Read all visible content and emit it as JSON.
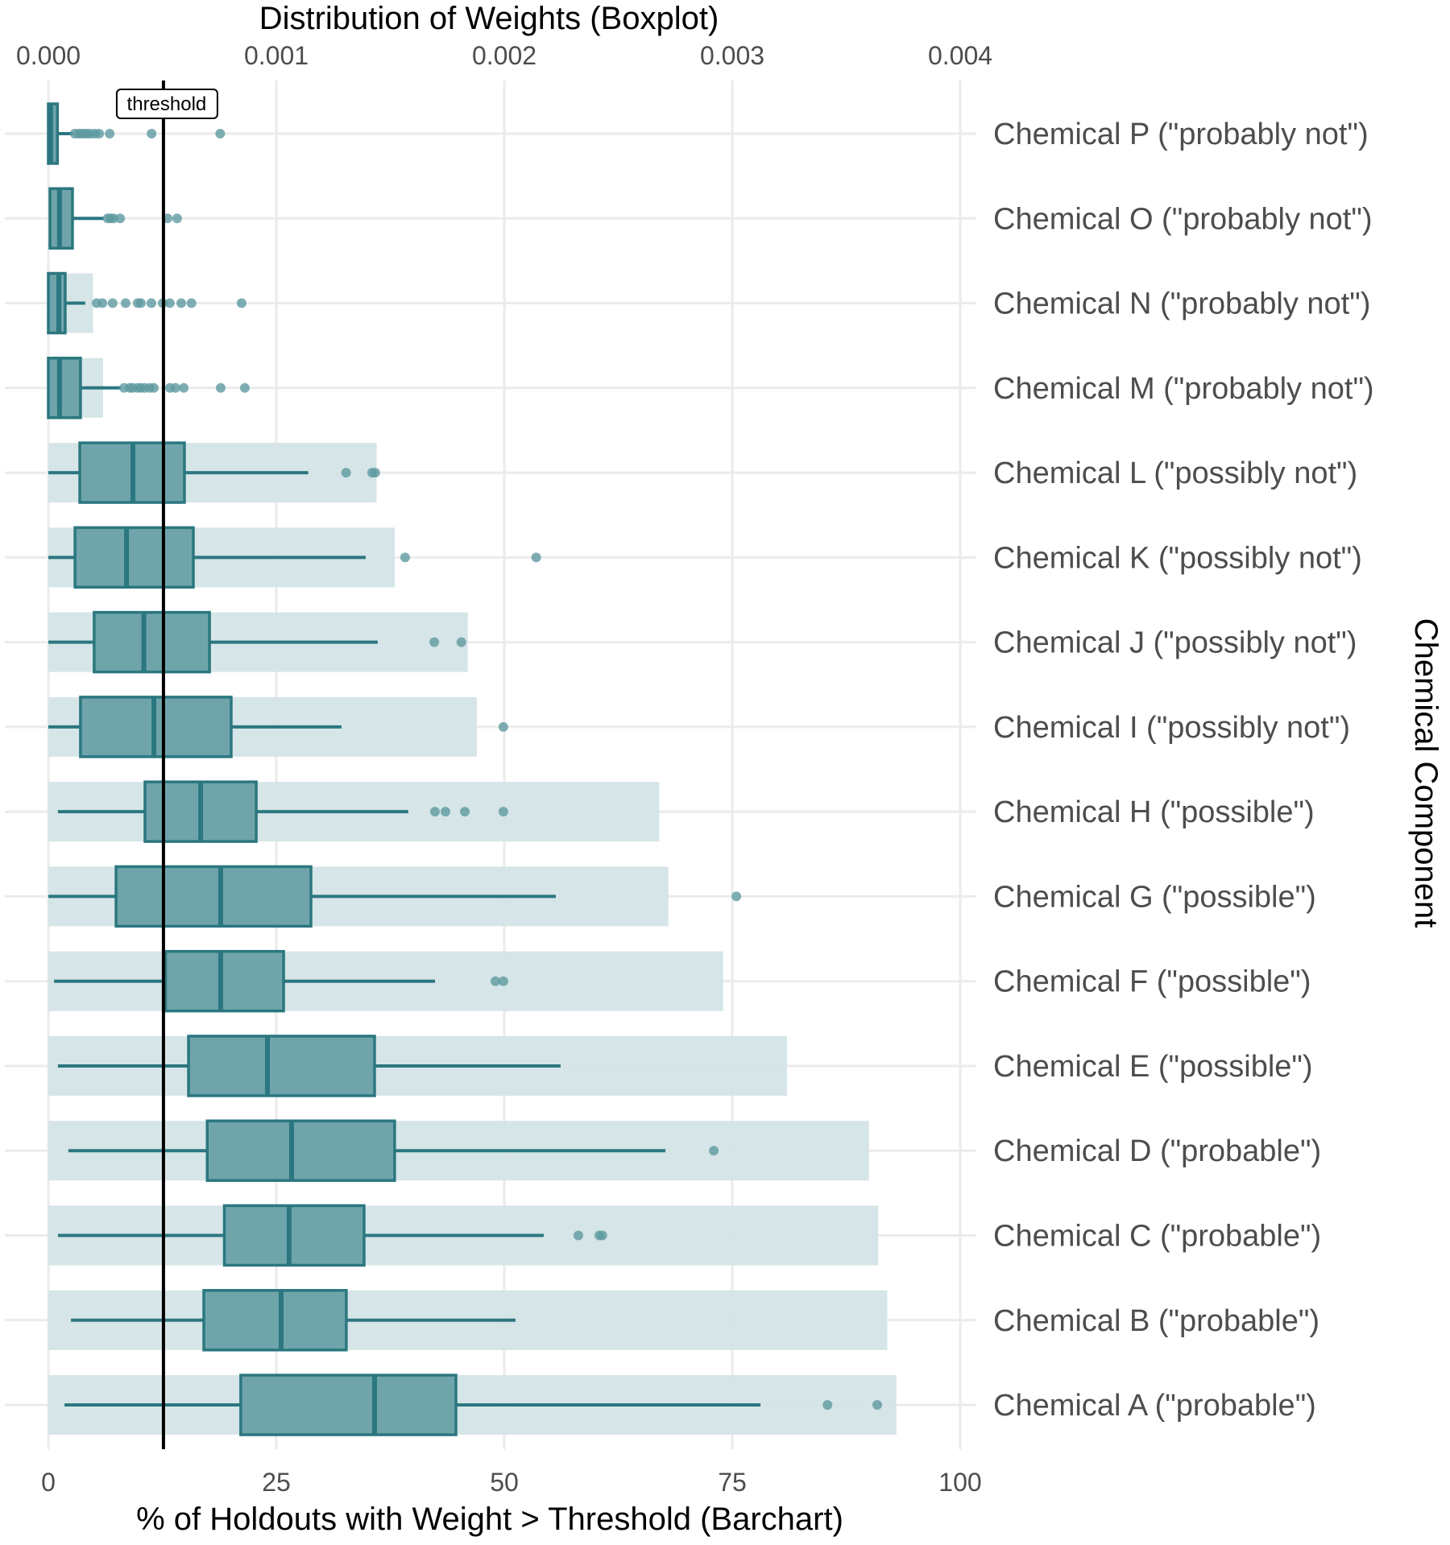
{
  "chart_data": {
    "type": "bar+boxplot",
    "title": "Distribution of Weights (Boxplot)",
    "top_axis": {
      "label": "Distribution of Weights (Boxplot)",
      "ticks": [
        "0.000",
        "0.001",
        "0.002",
        "0.003",
        "0.004"
      ],
      "tick_values": [
        0,
        0.001,
        0.002,
        0.003,
        0.004
      ],
      "range": [
        0,
        0.004
      ]
    },
    "bottom_axis": {
      "label": "% of Holdouts with Weight > Threshold (Barchart)",
      "ticks": [
        "0",
        "25",
        "50",
        "75",
        "100"
      ],
      "tick_values": [
        0,
        25,
        50,
        75,
        100
      ],
      "range": [
        0,
        100
      ]
    },
    "right_axis_label": "Chemical Component",
    "threshold": {
      "label": "threshold",
      "weight": 0.000505
    },
    "grid": true,
    "colors": {
      "box_fill": "#6fa5aa",
      "box_stroke": "#2b7780",
      "bar_fill": "#d4e4e6",
      "grid": "#ebebeb",
      "point": "#5e9aa0",
      "threshold": "#000000"
    },
    "categories": [
      "Chemical P (\"probably not\")",
      "Chemical O (\"probably not\")",
      "Chemical N (\"probably not\")",
      "Chemical M (\"probably not\")",
      "Chemical L (\"possibly not\")",
      "Chemical K (\"possibly not\")",
      "Chemical J (\"possibly not\")",
      "Chemical I (\"possibly not\")",
      "Chemical H (\"possible\")",
      "Chemical G (\"possible\")",
      "Chemical F (\"possible\")",
      "Chemical E (\"possible\")",
      "Chemical D (\"probable\")",
      "Chemical C (\"probable\")",
      "Chemical B (\"probable\")",
      "Chemical A (\"probable\")"
    ],
    "bar_percent": [
      0,
      0,
      4.9,
      6.0,
      36.0,
      38.0,
      46.0,
      47.0,
      67.0,
      68.0,
      74.0,
      81.0,
      90.0,
      91.0,
      92.0,
      93.0
    ],
    "boxplot_weights": [
      {
        "min": 0.0,
        "q1": 0.0,
        "median": 1e-05,
        "q3": 4e-05,
        "max": 0.000109,
        "outliers": [
          0.000116,
          0.000133,
          0.000145,
          0.00016,
          0.00017,
          0.000185,
          0.000205,
          0.000223,
          0.000269,
          0.000453,
          0.000754
        ]
      },
      {
        "min": 7e-06,
        "q1": 7e-06,
        "median": 4.9e-05,
        "q3": 0.000106,
        "max": 0.000244,
        "outliers": [
          0.00026,
          0.000273,
          0.000286,
          0.000315,
          0.000523,
          0.000565
        ]
      },
      {
        "min": 0.0,
        "q1": 0.0,
        "median": 4.6e-05,
        "q3": 7.4e-05,
        "max": 0.000162,
        "outliers": [
          0.000212,
          0.000237,
          0.000282,
          0.000339,
          0.000392,
          0.000406,
          0.000452,
          0.000502,
          0.000533,
          0.000583,
          0.000628,
          0.000848
        ]
      },
      {
        "min": 0.0,
        "q1": 0.0,
        "median": 4.9e-05,
        "q3": 0.000141,
        "max": 0.000318,
        "outliers": [
          0.000332,
          0.000357,
          0.00037,
          0.000392,
          0.000406,
          0.000424,
          0.000445,
          0.000463,
          0.000533,
          0.000558,
          0.000594,
          0.000756,
          0.000862
        ]
      },
      {
        "min": 0.0,
        "q1": 0.000138,
        "median": 0.000371,
        "q3": 0.000597,
        "max": 0.00114,
        "outliers": [
          0.001306,
          0.00142,
          0.001434
        ]
      },
      {
        "min": 0.0,
        "q1": 0.000117,
        "median": 0.000343,
        "q3": 0.000636,
        "max": 0.001392,
        "outliers": [
          0.001565,
          0.00214
        ]
      },
      {
        "min": 0.0,
        "q1": 0.000201,
        "median": 0.000419,
        "q3": 0.000707,
        "max": 0.001445,
        "outliers": [
          0.001693,
          0.001812
        ]
      },
      {
        "min": 0.0,
        "q1": 0.000141,
        "median": 0.000463,
        "q3": 0.000802,
        "max": 0.001286,
        "outliers": [
          0.001996
        ]
      },
      {
        "min": 4.2e-05,
        "q1": 0.000424,
        "median": 0.000668,
        "q3": 0.000912,
        "max": 0.001579,
        "outliers": [
          0.001696,
          0.001742,
          0.001827,
          0.001996
        ]
      },
      {
        "min": 0.0,
        "q1": 0.000297,
        "median": 0.000756,
        "q3": 0.001152,
        "max": 0.002226,
        "outliers": [
          0.003018
        ]
      },
      {
        "min": 2.5e-05,
        "q1": 0.000514,
        "median": 0.000756,
        "q3": 0.001032,
        "max": 0.001696,
        "outliers": [
          0.001961,
          0.001996
        ]
      },
      {
        "min": 4.2e-05,
        "q1": 0.000615,
        "median": 0.000961,
        "q3": 0.001431,
        "max": 0.002247,
        "outliers": []
      },
      {
        "min": 8.8e-05,
        "q1": 0.000697,
        "median": 0.001067,
        "q3": 0.001519,
        "max": 0.002707,
        "outliers": [
          0.002919
        ]
      },
      {
        "min": 4.2e-05,
        "q1": 0.000772,
        "median": 0.001056,
        "q3": 0.001385,
        "max": 0.002173,
        "outliers": [
          0.002325,
          0.002417,
          0.00243
        ]
      },
      {
        "min": 9.9e-05,
        "q1": 0.000682,
        "median": 0.001021,
        "q3": 0.001307,
        "max": 0.002049,
        "outliers": []
      },
      {
        "min": 7.1e-05,
        "q1": 0.000844,
        "median": 0.001431,
        "q3": 0.001788,
        "max": 0.003124,
        "outliers": [
          0.003418,
          0.003636
        ]
      }
    ]
  }
}
